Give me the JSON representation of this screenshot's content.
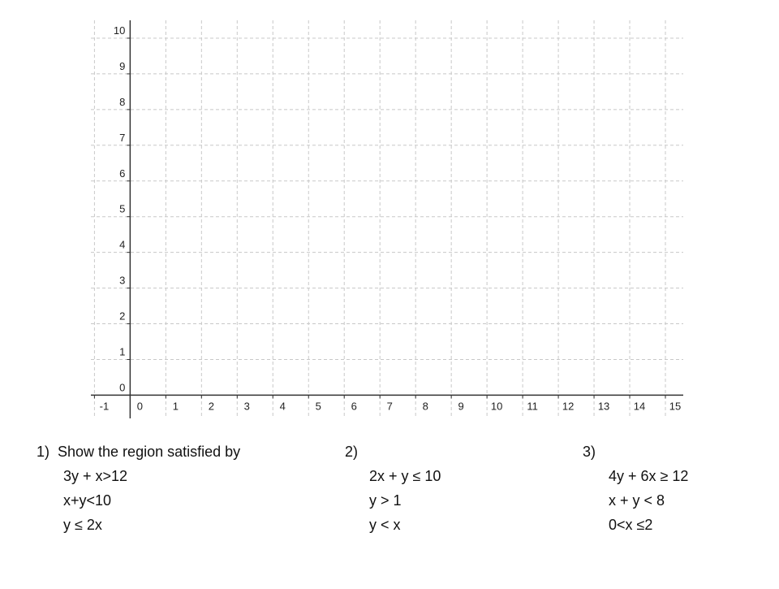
{
  "grid": {
    "xlim": [
      -1.1,
      15.5
    ],
    "ylim": [
      -0.65,
      10.5
    ],
    "xticks": [
      -1,
      0,
      1,
      2,
      3,
      4,
      5,
      6,
      7,
      8,
      9,
      10,
      11,
      12,
      13,
      14,
      15
    ],
    "yticks": [
      0,
      1,
      2,
      3,
      4,
      5,
      6,
      7,
      8,
      9,
      10
    ]
  },
  "questions": [
    {
      "label": "1)  Show the region satisfied by",
      "lines": [
        "3y + x>12",
        "x+y<10",
        "y ≤ 2x"
      ]
    },
    {
      "label": "2)",
      "lines": [
        "2x + y ≤ 10",
        "y > 1",
        "y < x"
      ]
    },
    {
      "label": "3)",
      "lines": [
        "4y + 6x ≥ 12",
        "x + y < 8",
        "0<x ≤2"
      ]
    }
  ]
}
